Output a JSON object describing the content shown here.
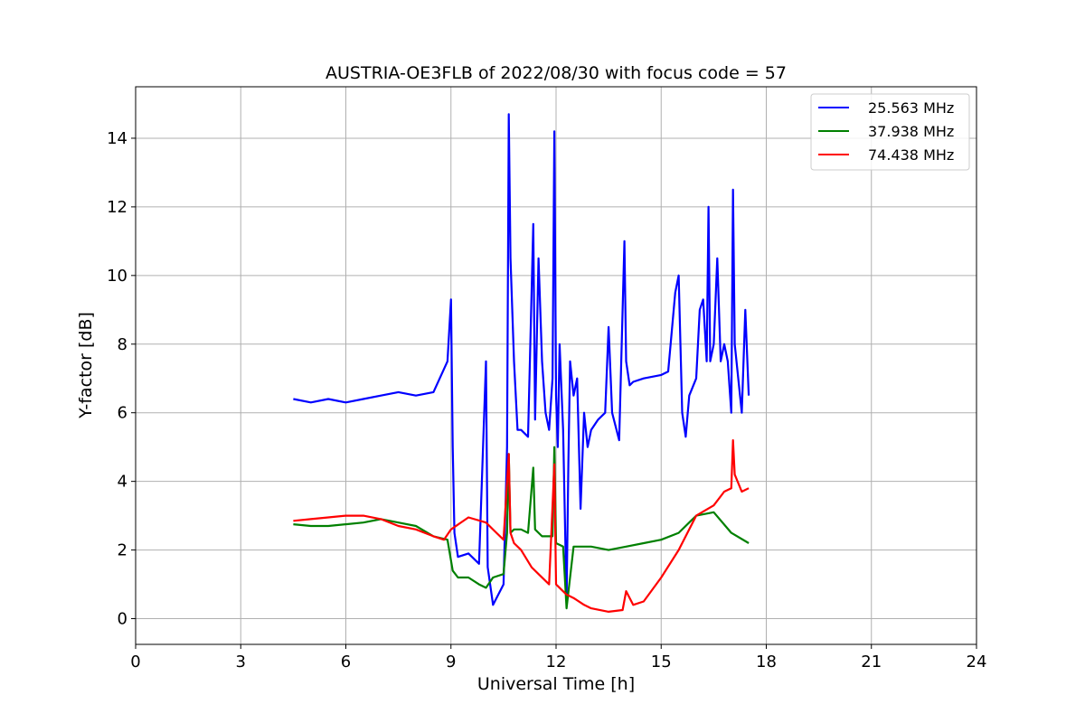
{
  "chart_data": {
    "type": "line",
    "title": "AUSTRIA-OE3FLB of 2022/08/30 with focus code = 57",
    "xlabel": "Universal Time [h]",
    "ylabel": "Y-factor [dB]",
    "xlim": [
      0,
      24
    ],
    "ylim": [
      -0.75,
      15.5
    ],
    "xticks": [
      0,
      3,
      6,
      9,
      12,
      15,
      18,
      21,
      24
    ],
    "yticks": [
      0,
      2,
      4,
      6,
      8,
      10,
      12,
      14
    ],
    "grid": true,
    "legend_position": "top-right",
    "series": [
      {
        "name": "25.563 MHz",
        "color": "#0000ff",
        "x": [
          4.5,
          5.0,
          5.5,
          6.0,
          6.5,
          7.0,
          7.5,
          8.0,
          8.5,
          8.9,
          9.0,
          9.05,
          9.1,
          9.2,
          9.5,
          9.8,
          10.0,
          10.05,
          10.2,
          10.5,
          10.6,
          10.65,
          10.7,
          10.8,
          10.9,
          11.0,
          11.2,
          11.35,
          11.4,
          11.5,
          11.6,
          11.7,
          11.8,
          11.9,
          11.95,
          12.0,
          12.05,
          12.1,
          12.2,
          12.3,
          12.35,
          12.4,
          12.5,
          12.6,
          12.7,
          12.8,
          12.9,
          13.0,
          13.2,
          13.4,
          13.5,
          13.6,
          13.8,
          13.9,
          13.95,
          14.0,
          14.1,
          14.2,
          14.5,
          15.0,
          15.2,
          15.4,
          15.5,
          15.6,
          15.7,
          15.8,
          16.0,
          16.1,
          16.2,
          16.3,
          16.35,
          16.4,
          16.5,
          16.6,
          16.7,
          16.8,
          16.9,
          17.0,
          17.05,
          17.1,
          17.2,
          17.3,
          17.4,
          17.5
        ],
        "values": [
          6.4,
          6.3,
          6.4,
          6.3,
          6.4,
          6.5,
          6.6,
          6.5,
          6.6,
          7.5,
          9.3,
          5.0,
          2.5,
          1.8,
          1.9,
          1.6,
          7.5,
          1.5,
          0.4,
          1.0,
          5.0,
          14.7,
          10.5,
          7.5,
          5.5,
          5.5,
          5.3,
          11.5,
          5.8,
          10.5,
          7.5,
          6.0,
          5.5,
          7.0,
          14.2,
          6.5,
          5.0,
          8.0,
          5.5,
          0.5,
          4.5,
          7.5,
          6.5,
          7.0,
          3.2,
          6.0,
          5.0,
          5.5,
          5.8,
          6.0,
          8.5,
          6.0,
          5.2,
          9.0,
          11.0,
          7.5,
          6.8,
          6.9,
          7.0,
          7.1,
          7.2,
          9.5,
          10.0,
          6.0,
          5.3,
          6.5,
          7.0,
          9.0,
          9.3,
          7.5,
          12.0,
          7.5,
          8.0,
          10.5,
          7.5,
          8.0,
          7.5,
          6.0,
          12.5,
          8.0,
          7.0,
          6.0,
          9.0,
          6.5
        ]
      },
      {
        "name": "37.938 MHz",
        "color": "#008000",
        "x": [
          4.5,
          5.0,
          5.5,
          6.0,
          6.5,
          7.0,
          7.5,
          8.0,
          8.5,
          8.9,
          9.05,
          9.2,
          9.5,
          9.8,
          10.0,
          10.2,
          10.5,
          10.6,
          10.65,
          10.7,
          10.8,
          11.0,
          11.2,
          11.35,
          11.4,
          11.6,
          11.9,
          11.95,
          12.0,
          12.2,
          12.3,
          12.5,
          13.0,
          13.5,
          14.0,
          14.5,
          15.0,
          15.5,
          16.0,
          16.5,
          17.0,
          17.5
        ],
        "values": [
          2.75,
          2.7,
          2.7,
          2.75,
          2.8,
          2.9,
          2.8,
          2.7,
          2.4,
          2.3,
          1.4,
          1.2,
          1.2,
          1.0,
          0.9,
          1.2,
          1.3,
          2.5,
          4.8,
          2.5,
          2.6,
          2.6,
          2.5,
          4.4,
          2.6,
          2.4,
          2.4,
          5.0,
          2.2,
          2.1,
          0.3,
          2.1,
          2.1,
          2.0,
          2.1,
          2.2,
          2.3,
          2.5,
          3.0,
          3.1,
          2.5,
          2.2
        ]
      },
      {
        "name": "74.438 MHz",
        "color": "#ff0000",
        "x": [
          4.5,
          5.0,
          5.5,
          6.0,
          6.5,
          7.0,
          7.5,
          8.0,
          8.5,
          8.8,
          9.0,
          9.5,
          10.0,
          10.3,
          10.5,
          10.65,
          10.7,
          10.8,
          11.0,
          11.3,
          11.5,
          11.8,
          11.95,
          12.0,
          12.1,
          12.3,
          12.5,
          12.8,
          13.0,
          13.5,
          13.9,
          14.0,
          14.2,
          14.5,
          15.0,
          15.5,
          16.0,
          16.5,
          16.8,
          17.0,
          17.05,
          17.1,
          17.3,
          17.5
        ],
        "values": [
          2.85,
          2.9,
          2.95,
          3.0,
          3.0,
          2.9,
          2.7,
          2.6,
          2.4,
          2.3,
          2.6,
          2.95,
          2.8,
          2.5,
          2.3,
          4.8,
          2.5,
          2.2,
          2.0,
          1.5,
          1.3,
          1.0,
          4.5,
          1.0,
          0.9,
          0.7,
          0.6,
          0.4,
          0.3,
          0.2,
          0.25,
          0.8,
          0.4,
          0.5,
          1.2,
          2.0,
          3.0,
          3.3,
          3.7,
          3.8,
          5.2,
          4.2,
          3.7,
          3.8
        ]
      }
    ]
  }
}
